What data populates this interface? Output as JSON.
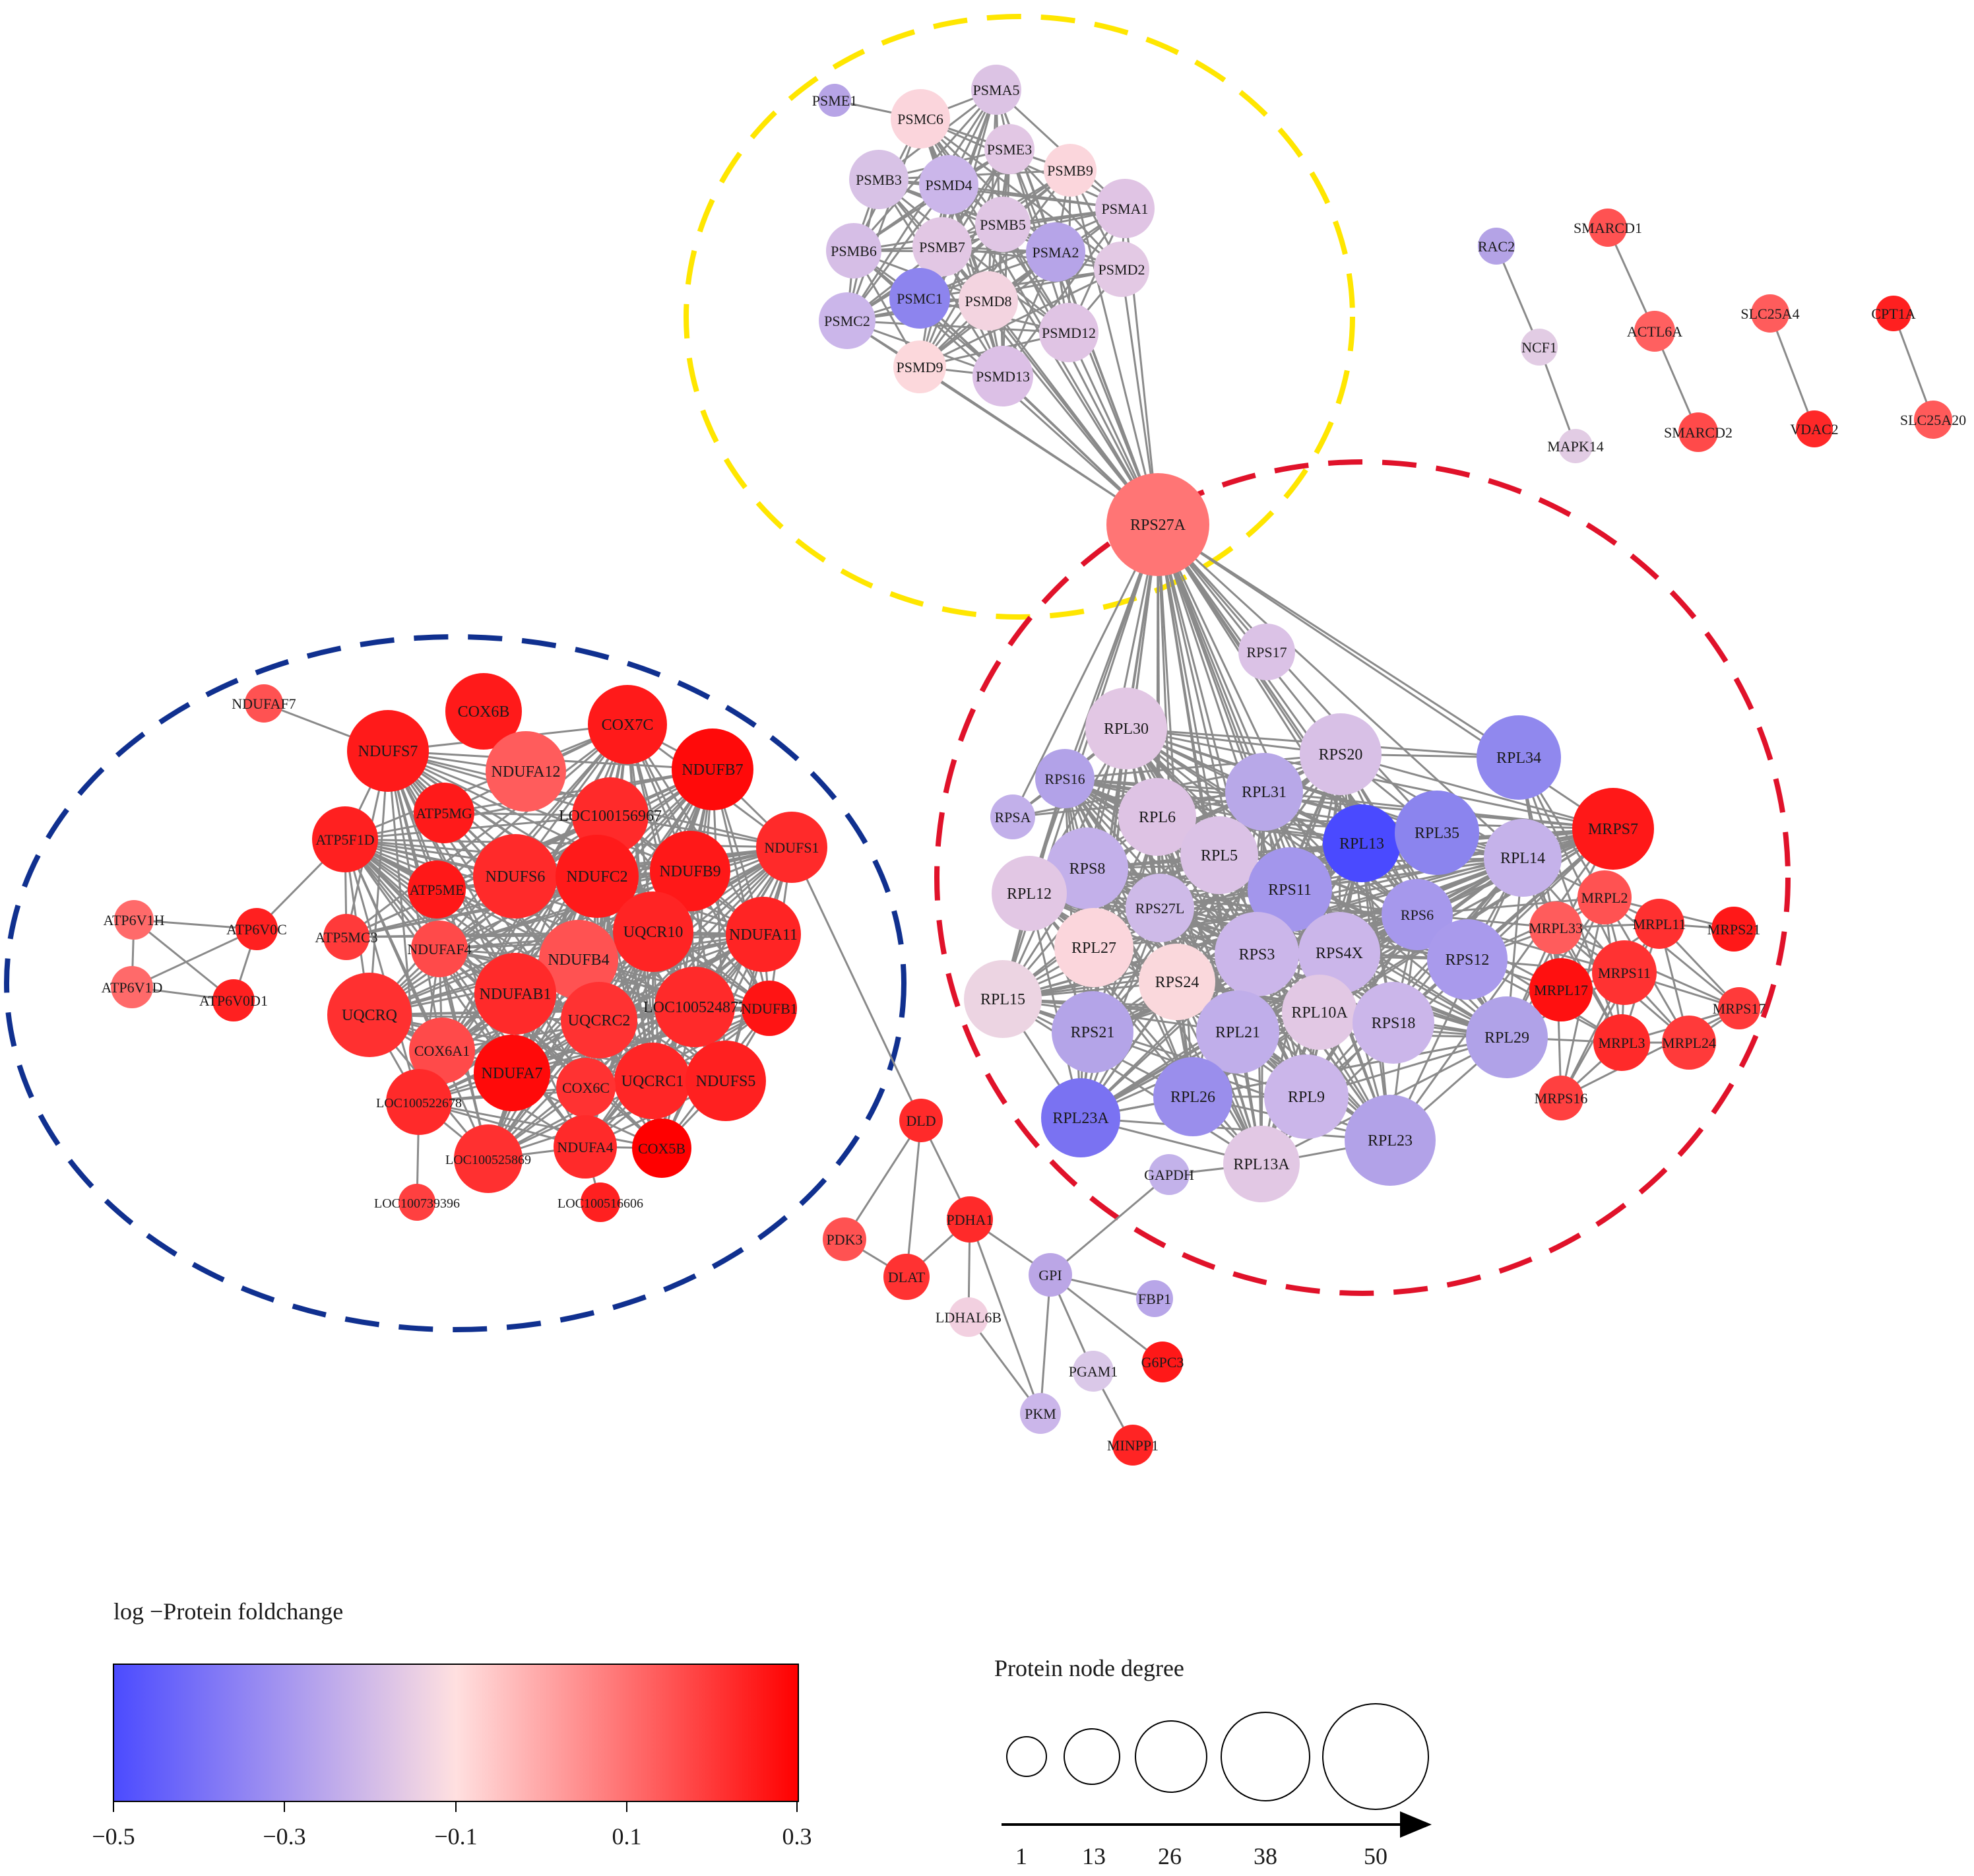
{
  "legend": {
    "color_title": "log −Protein foldchange",
    "color_ticks": [
      "−0.5",
      "−0.3",
      "−0.1",
      "0.1",
      "0.3"
    ],
    "size_title": "Protein node degree",
    "size_ticks": [
      "1",
      "13",
      "26",
      "38",
      "50"
    ]
  },
  "colors": {
    "scale_min": "#4b4bff",
    "scale_mid": "#ffe0e0",
    "scale_max": "#ff0000",
    "edge": "#8a8a8a",
    "cluster_proteasome": "#ffe600",
    "cluster_ribosome": "#e0122a",
    "cluster_oxphos": "#10308f"
  },
  "nodes": {
    "PSME1": "PSME1",
    "PSMC6": "PSMC6",
    "PSMA5": "PSMA5",
    "PSME3": "PSME3",
    "PSMB9": "PSMB9",
    "PSMB3": "PSMB3",
    "PSMD4": "PSMD4",
    "PSMA1": "PSMA1",
    "PSMB5": "PSMB5",
    "PSMB7": "PSMB7",
    "PSMB6": "PSMB6",
    "PSMA2": "PSMA2",
    "PSMD2": "PSMD2",
    "PSMC1": "PSMC1",
    "PSMD8": "PSMD8",
    "PSMC2": "PSMC2",
    "PSMD12": "PSMD12",
    "PSMD9": "PSMD9",
    "PSMD13": "PSMD13",
    "RPS27A": "RPS27A",
    "RAC2": "RAC2",
    "NCF1": "NCF1",
    "MAPK14": "MAPK14",
    "SMARCD1": "SMARCD1",
    "ACTL6A": "ACTL6A",
    "SMARCD2": "SMARCD2",
    "SLC25A4": "SLC25A4",
    "VDAC2": "VDAC2",
    "CPT1A": "CPT1A",
    "SLC25A20": "SLC25A20",
    "RPS17": "RPS17",
    "RPL30": "RPL30",
    "RPS20": "RPS20",
    "RPL34": "RPL34",
    "RPS16": "RPS16",
    "RPL31": "RPL31",
    "RPSA": "RPSA",
    "RPL6": "RPL6",
    "RPL13": "RPL13",
    "RPL35": "RPL35",
    "MRPS7": "MRPS7",
    "RPS8": "RPS8",
    "RPL5": "RPL5",
    "RPL14": "RPL14",
    "RPL12": "RPL12",
    "RPS11": "RPS11",
    "MRPL2": "MRPL2",
    "RPS27L": "RPS27L",
    "RPS6": "RPS6",
    "MRPL11": "MRPL11",
    "MRPS21": "MRPS21",
    "MRPL33": "MRPL33",
    "RPL27": "RPL27",
    "RPS3": "RPS3",
    "RPS4X": "RPS4X",
    "RPS12": "RPS12",
    "RPS24": "RPS24",
    "MRPS11": "MRPS11",
    "MRPL17": "MRPL17",
    "RPL15": "RPL15",
    "MRPS17": "MRPS17",
    "RPS21": "RPS21",
    "RPL21": "RPL21",
    "RPL10A": "RPL10A",
    "RPS18": "RPS18",
    "RPL29": "RPL29",
    "MRPL3": "MRPL3",
    "MRPL24": "MRPL24",
    "MRPS16": "MRPS16",
    "RPL26": "RPL26",
    "RPL9": "RPL9",
    "RPL23A": "RPL23A",
    "RPL23": "RPL23",
    "RPL13A": "RPL13A",
    "GAPDH": "GAPDH",
    "NDUFAF7": "NDUFAF7",
    "COX6B": "COX6B",
    "COX7C": "COX7C",
    "NDUFS7": "NDUFS7",
    "NDUFA12": "NDUFA12",
    "NDUFB7": "NDUFB7",
    "LOC100156967": "LOC100156967",
    "ATP5MG": "ATP5MG",
    "ATP5F1D": "ATP5F1D",
    "NDUFS1": "NDUFS1",
    "NDUFS6": "NDUFS6",
    "NDUFC2": "NDUFC2",
    "NDUFB9": "NDUFB9",
    "ATP5ME": "ATP5ME",
    "ATP6V1H": "ATP6V1H",
    "ATP6V0C": "ATP6V0C",
    "UQCR10": "UQCR10",
    "NDUFA11": "NDUFA11",
    "ATP5MC3": "ATP5MC3",
    "NDUFAF4": "NDUFAF4",
    "NDUFB4": "NDUFB4",
    "ATP6V1D": "ATP6V1D",
    "ATP6V0D1": "ATP6V0D1",
    "NDUFAB1": "NDUFAB1",
    "LOC100524877": "LOC100524877",
    "UQCRQ": "UQCRQ",
    "COX6A1": "COX6A1",
    "UQCRC2": "UQCRC2",
    "NDUFB1": "NDUFB1",
    "NDUFA7": "NDUFA7",
    "UQCRC1": "UQCRC1",
    "NDUFS5": "NDUFS5",
    "COX6C": "COX6C",
    "LOC100522678": "LOC100522678",
    "NDUFA4": "NDUFA4",
    "COX5B": "COX5B",
    "LOC100525869": "LOC100525869",
    "LOC100739396": "LOC100739396",
    "LOC100516606": "LOC100516606",
    "DLD": "DLD",
    "PDK3": "PDK3",
    "PDHA1": "PDHA1",
    "DLAT": "DLAT",
    "GPI": "GPI",
    "FBP1": "FBP1",
    "LDHAL6B": "LDHAL6B",
    "G6PC3": "G6PC3",
    "PGAM1": "PGAM1",
    "PKM": "PKM",
    "MINPP1": "MINPP1"
  }
}
